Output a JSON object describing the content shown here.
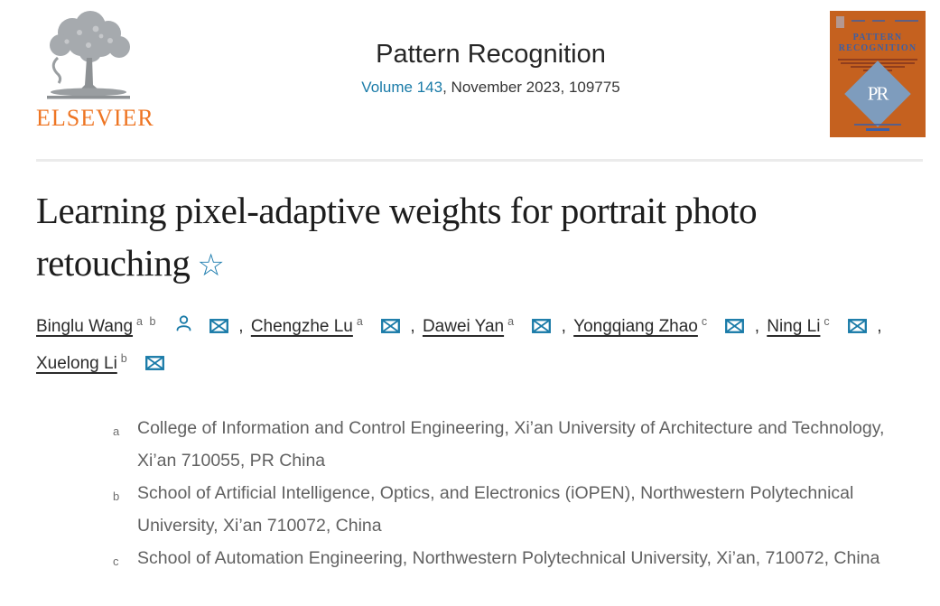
{
  "header": {
    "elsevier_wordmark": "ELSEVIER",
    "journal_title": "Pattern Recognition",
    "volume_link": "Volume 143",
    "issue_rest": ", November 2023, 109775"
  },
  "cover": {
    "title": "PATTERN RECOGNITION",
    "monogram": "PR"
  },
  "article": {
    "title": "Learning pixel-adaptive weights for portrait photo retouching",
    "star": "☆"
  },
  "authors": {
    "separator": ",",
    "items": [
      {
        "name": "Binglu Wang",
        "sup": "a b",
        "person_icon": true,
        "mail_icon": true
      },
      {
        "name": "Chengzhe Lu",
        "sup": "a",
        "person_icon": false,
        "mail_icon": true
      },
      {
        "name": "Dawei Yan",
        "sup": "a",
        "person_icon": false,
        "mail_icon": true
      },
      {
        "name": "Yongqiang Zhao",
        "sup": "c",
        "person_icon": false,
        "mail_icon": true
      },
      {
        "name": "Ning Li",
        "sup": "c",
        "person_icon": false,
        "mail_icon": true
      },
      {
        "name": "Xuelong Li",
        "sup": "b",
        "person_icon": false,
        "mail_icon": true
      }
    ]
  },
  "affiliations": [
    {
      "label": "a",
      "text": "College of Information and Control Engineering, Xi’an University of Architecture and Technology, Xi’an 710055, PR China"
    },
    {
      "label": "b",
      "text": "School of Artificial Intelligence, Optics, and Electronics (iOPEN), Northwestern Polytechnical University, Xi’an 710072, China"
    },
    {
      "label": "c",
      "text": "School of Automation Engineering, Northwestern Polytechnical University, Xi’an, 710072, China"
    }
  ],
  "colors": {
    "accent_teal": "#1a7ba8",
    "elsevier_orange": "#ee7523",
    "cover_orange": "#c5611f",
    "cover_blue": "#3c5fa5",
    "diamond_blue": "#7e9cbd"
  }
}
